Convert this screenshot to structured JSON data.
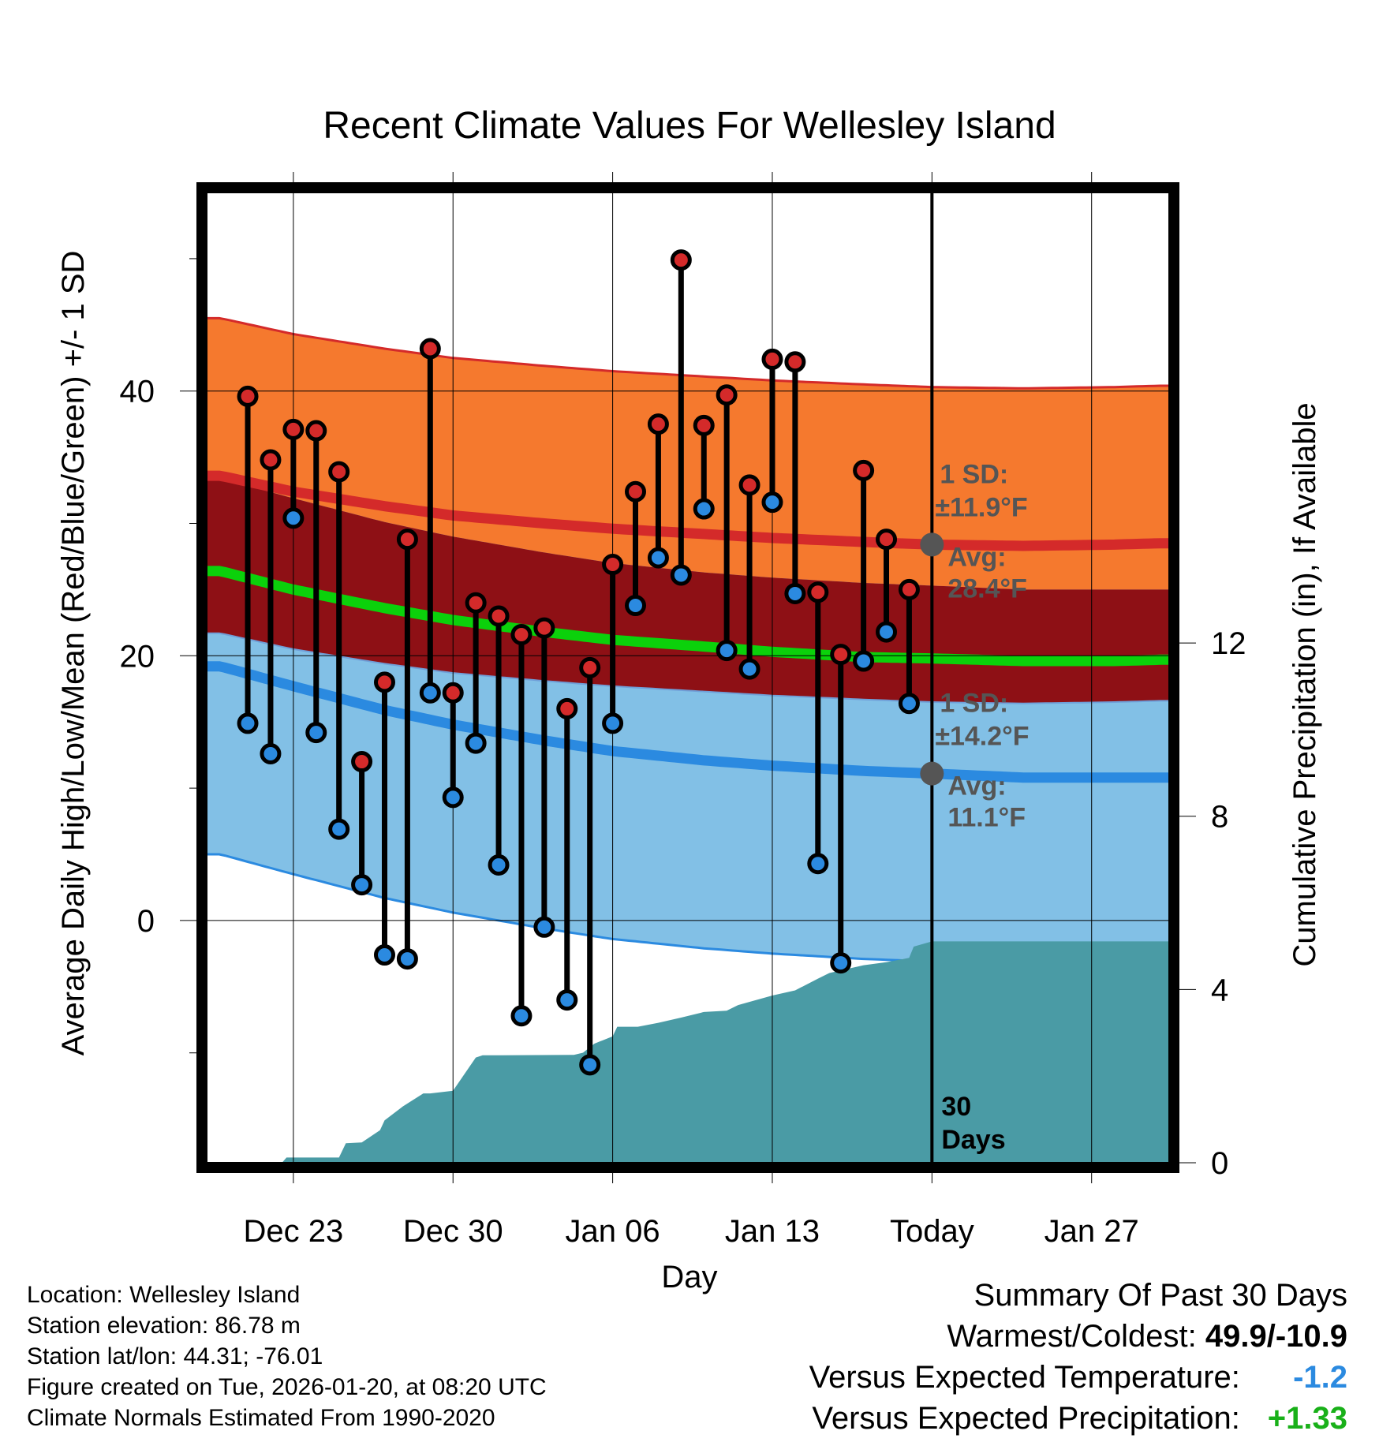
{
  "chart_data": {
    "type": "line",
    "title": "Recent Climate Values For Wellesley Island",
    "xlabel": "Day",
    "ylabel": "Average Daily High/Low/Mean (Red/Blue/Green) +/- 1 SD",
    "y2label": "Cumulative Precipitation (in), If Available",
    "x_range_days": [
      -31.8,
      10.4
    ],
    "ylim": [
      -18.3,
      55
    ],
    "y2lim": [
      0,
      22.4
    ],
    "x_ticks": [
      {
        "day": -28,
        "label": "Dec 23"
      },
      {
        "day": -21,
        "label": "Dec 30"
      },
      {
        "day": -14,
        "label": "Jan 06"
      },
      {
        "day": -7,
        "label": "Jan 13"
      },
      {
        "day": 0,
        "label": "Today"
      },
      {
        "day": 7,
        "label": "Jan 27"
      }
    ],
    "y_ticks": [
      0,
      20,
      40
    ],
    "y_minor_ticks": [
      -10,
      10,
      30,
      50
    ],
    "y2_ticks": [
      0,
      4,
      8,
      12
    ],
    "days": [
      -30,
      -29,
      -28,
      -27,
      -26,
      -25,
      -24,
      -23,
      -22,
      -21,
      -20,
      -19,
      -18,
      -17,
      -16,
      -15,
      -14,
      -13,
      -12,
      -11,
      -10,
      -9,
      -8,
      -7,
      -6,
      -5,
      -4,
      -3,
      -2,
      -1
    ],
    "series": [
      {
        "name": "Daily High",
        "color": "#d42a2a",
        "values": [
          39.6,
          34.8,
          37.1,
          37.0,
          33.9,
          12.0,
          18.0,
          28.8,
          43.2,
          17.2,
          24.0,
          23.0,
          21.6,
          22.1,
          16.0,
          19.1,
          26.9,
          32.4,
          37.5,
          49.9,
          37.4,
          39.7,
          32.9,
          42.4,
          42.2,
          24.8,
          20.1,
          34.0,
          28.8,
          25.0
        ]
      },
      {
        "name": "Daily Low",
        "color": "#2b8ae0",
        "values": [
          14.9,
          12.6,
          30.4,
          14.2,
          6.9,
          2.7,
          -2.6,
          -2.9,
          17.2,
          9.3,
          13.4,
          4.2,
          -7.2,
          -0.5,
          -6.0,
          -10.9,
          14.9,
          23.8,
          27.4,
          26.1,
          31.1,
          20.4,
          19.0,
          31.6,
          24.7,
          4.3,
          -3.2,
          19.6,
          21.8,
          16.4
        ]
      }
    ],
    "normals": {
      "days": [
        -31.2,
        -28,
        -24,
        -21,
        -17,
        -14,
        -10,
        -7,
        -3,
        0,
        4,
        8,
        10
      ],
      "high_mean": [
        33.6,
        32.4,
        31.3,
        30.6,
        30.0,
        29.6,
        29.2,
        28.9,
        28.6,
        28.4,
        28.3,
        28.4,
        28.5
      ],
      "high_sd": 11.9,
      "low_mean": [
        19.2,
        17.7,
        15.9,
        14.8,
        13.6,
        12.8,
        12.1,
        11.7,
        11.3,
        11.1,
        10.8,
        10.8,
        10.8
      ],
      "low_sd": 14.2,
      "mean": [
        26.4,
        25.0,
        23.6,
        22.7,
        21.8,
        21.2,
        20.7,
        20.3,
        19.9,
        19.8,
        19.6,
        19.6,
        19.7
      ]
    },
    "precipitation_cumulative": {
      "color": "#4a9ba5",
      "days": [
        -31.8,
        -28.5,
        -28.3,
        -26,
        -25.7,
        -25,
        -24.2,
        -24,
        -23.2,
        -22.3,
        -22,
        -21,
        -20,
        -19.7,
        -15.7,
        -15.3,
        -14.8,
        -14,
        -13.8,
        -12.9,
        -12,
        -11,
        -10,
        -9,
        -8.5,
        -7,
        -6,
        -5,
        -4.5,
        -3,
        -2,
        -1,
        -0.8,
        0,
        10.4
      ],
      "values": [
        0,
        0,
        0.12,
        0.12,
        0.45,
        0.47,
        0.75,
        0.98,
        1.3,
        1.6,
        1.6,
        1.66,
        2.43,
        2.48,
        2.49,
        2.54,
        2.75,
        2.92,
        3.14,
        3.14,
        3.23,
        3.35,
        3.48,
        3.51,
        3.64,
        3.86,
        3.98,
        4.25,
        4.38,
        4.56,
        4.63,
        4.73,
        4.99,
        5.11,
        5.11
      ]
    },
    "markers": {
      "today_day": 0,
      "high_avg_label": {
        "value": 28.4,
        "sd_text": "1 SD:",
        "sd_value": "±11.9°F",
        "avg_text": "Avg:",
        "avg_value": "28.4°F"
      },
      "low_avg_label": {
        "value": 11.1,
        "sd_text": "1 SD:",
        "sd_value": "±14.2°F",
        "avg_text": "Avg:",
        "avg_value": "11.1°F"
      },
      "days_label": [
        "30",
        "Days"
      ]
    },
    "colors": {
      "high_band": "#f5792e",
      "high_line": "#d42a2a",
      "mid_band": "#8e1015",
      "low_band": "#82c0e6",
      "low_line": "#2b8ae0",
      "mean_line": "#0bd10b"
    }
  },
  "info": [
    "Location: Wellesley Island",
    "Station elevation: 86.78 m",
    "Station lat/lon: 44.31; -76.01",
    "Figure created on Tue, 2026-01-20, at 08:20 UTC",
    "Climate Normals Estimated From 1990-2020"
  ],
  "summary": {
    "title": "Summary Of Past 30 Days",
    "warm_cold_label": "Warmest/Coldest:",
    "warm_cold_value": "49.9/-10.9",
    "temp_label": "Versus Expected Temperature:",
    "temp_value": "-1.2",
    "temp_color": "#2b8ae0",
    "precip_label": "Versus Expected Precipitation:",
    "precip_value": "+1.33",
    "precip_color": "#19b019"
  }
}
